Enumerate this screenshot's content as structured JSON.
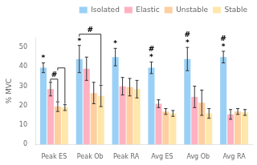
{
  "chart_data": {
    "type": "bar",
    "categories": [
      "Peak ES",
      "Peak Ob",
      "Peak RA",
      "Avg ES",
      "Avg Ob",
      "Avg RA"
    ],
    "series": [
      {
        "name": "Isolated",
        "values": [
          39.5,
          44.0,
          45.0,
          39.5,
          44.0,
          45.0
        ],
        "errors": [
          2.5,
          7.0,
          4.5,
          3.0,
          6.0,
          3.0
        ]
      },
      {
        "name": "Elastic",
        "values": [
          28.5,
          39.0,
          30.0,
          21.0,
          24.5,
          15.5
        ],
        "errors": [
          3.5,
          6.0,
          4.5,
          2.0,
          5.5,
          2.5
        ]
      },
      {
        "name": "Unstable",
        "values": [
          19.5,
          26.5,
          29.5,
          17.0,
          21.5,
          17.0
        ],
        "errors": [
          2.5,
          5.5,
          4.5,
          1.5,
          6.5,
          1.5
        ]
      },
      {
        "name": "Stable",
        "values": [
          19.0,
          25.0,
          28.5,
          16.0,
          16.0,
          16.5
        ],
        "errors": [
          1.5,
          5.5,
          4.5,
          1.5,
          2.5,
          1.5
        ]
      }
    ],
    "ylabel": "% MVC",
    "ylim": [
      0,
      55
    ],
    "yticks": [
      0,
      10,
      20,
      30,
      40,
      50
    ],
    "grid": false,
    "legend": "upper right",
    "annotations": [
      {
        "text": "*",
        "category": "Peak ES",
        "series": "Isolated"
      },
      {
        "text": "*",
        "category": "Peak Ob",
        "series": "Isolated"
      },
      {
        "text": "*",
        "category": "Peak RA",
        "series": "Isolated"
      },
      {
        "text": "*",
        "category": "Avg ES",
        "series": "Isolated"
      },
      {
        "text": "*",
        "category": "Avg Ob",
        "series": "Isolated"
      },
      {
        "text": "*",
        "category": "Avg RA",
        "series": "Isolated"
      },
      {
        "text": "#",
        "category": "Avg ES",
        "series": "Isolated"
      },
      {
        "text": "#",
        "category": "Avg Ob",
        "series": "Isolated"
      },
      {
        "text": "#",
        "category": "Avg RA",
        "series": "Isolated"
      }
    ],
    "brackets": [
      {
        "text": "#",
        "category": "Peak ES",
        "from": "Elastic",
        "to": "Unstable"
      },
      {
        "category": "Peak ES",
        "from": "Unstable",
        "to": "Stable"
      },
      {
        "text": "#",
        "category": "Peak Ob",
        "from": "Isolated",
        "to": "Stable"
      }
    ]
  }
}
